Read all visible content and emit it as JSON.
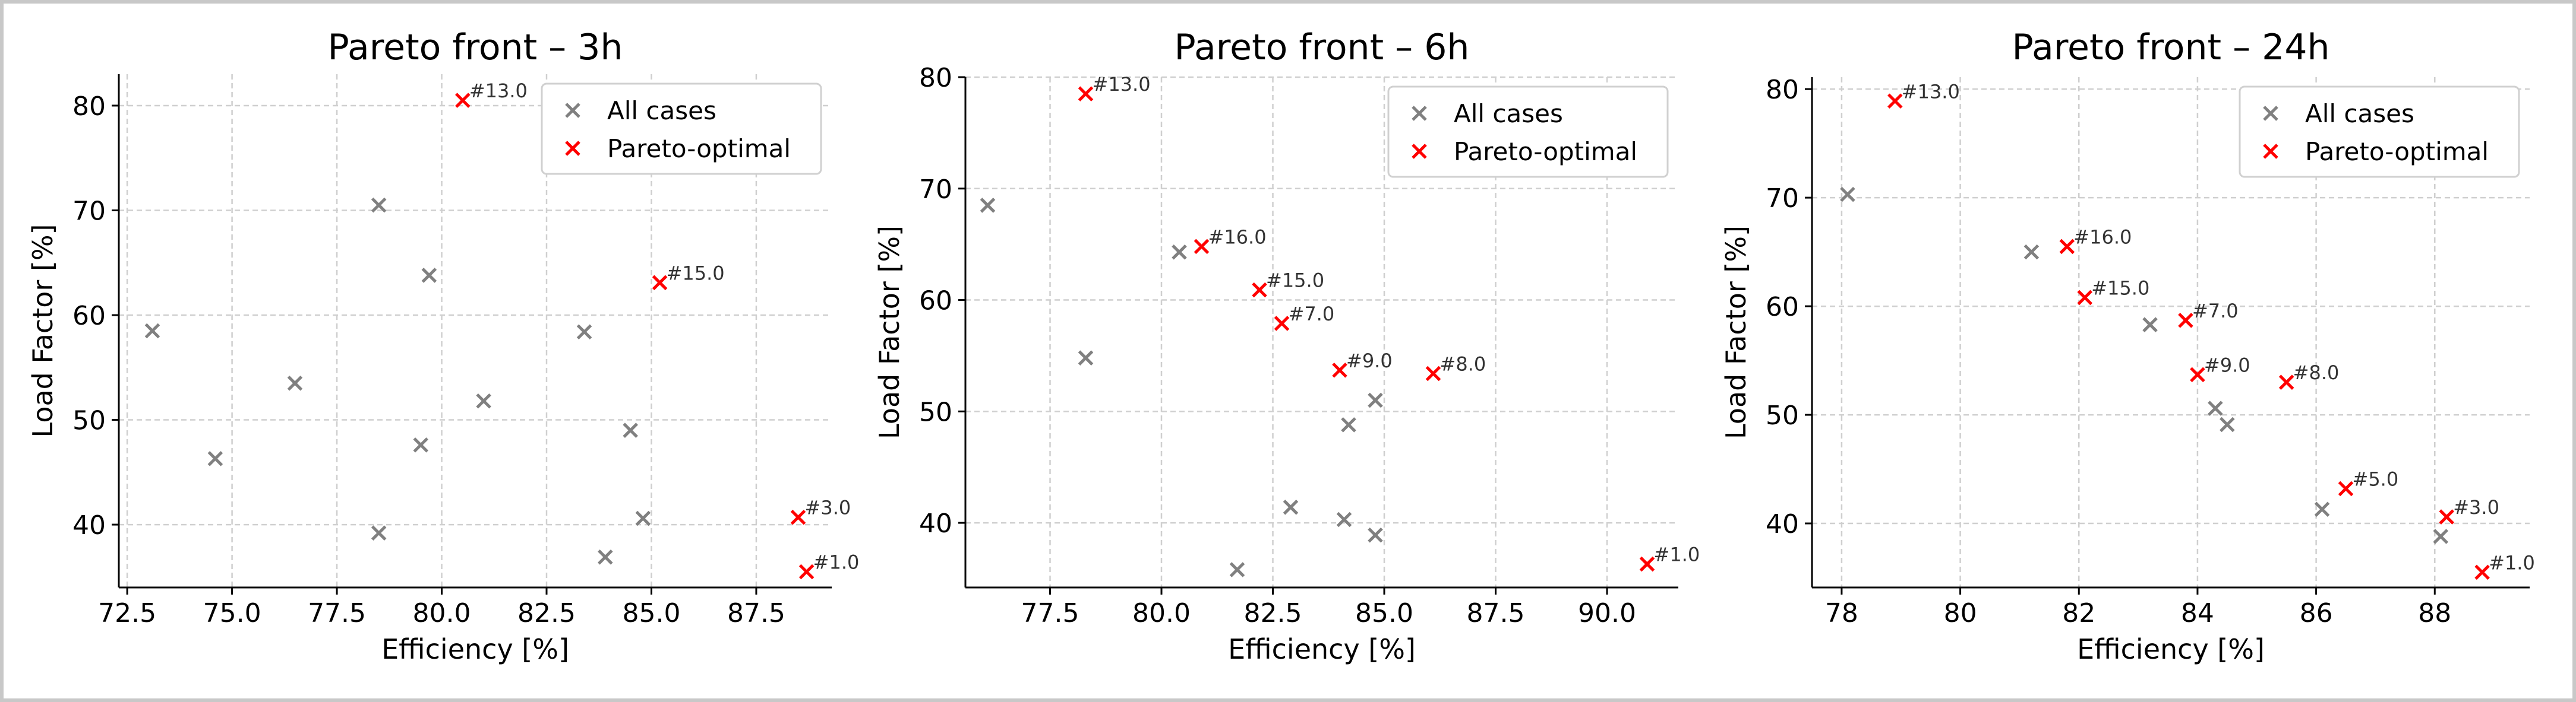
{
  "colors": {
    "all_cases": "#808080",
    "pareto": "#ff0000",
    "grid": "#cfcfcf",
    "axis": "#000000"
  },
  "chart_data": [
    {
      "type": "scatter",
      "title": "Pareto front – 3h",
      "xlabel": "Efficiency [%]",
      "ylabel": "Load Factor [%]",
      "xlim": [
        72.3,
        89.3
      ],
      "ylim": [
        34.0,
        83.0
      ],
      "xticks": [
        72.5,
        75.0,
        77.5,
        80.0,
        82.5,
        85.0,
        87.5
      ],
      "xtick_labels": [
        "72.5",
        "75.0",
        "77.5",
        "80.0",
        "82.5",
        "85.0",
        "87.5"
      ],
      "yticks": [
        40,
        50,
        60,
        70,
        80
      ],
      "ytick_labels": [
        "40",
        "50",
        "60",
        "70",
        "80"
      ],
      "grid": true,
      "legend": {
        "position": "top-right",
        "entries": [
          "All cases",
          "Pareto-optimal"
        ]
      },
      "series": [
        {
          "name": "All cases",
          "marker": "x",
          "points": [
            [
              73.1,
              58.5
            ],
            [
              74.6,
              46.3
            ],
            [
              76.5,
              53.5
            ],
            [
              78.5,
              70.5
            ],
            [
              79.7,
              63.8
            ],
            [
              79.5,
              47.6
            ],
            [
              78.5,
              39.2
            ],
            [
              81.0,
              51.8
            ],
            [
              83.4,
              58.4
            ],
            [
              84.5,
              49.0
            ],
            [
              84.8,
              40.6
            ],
            [
              83.9,
              36.9
            ]
          ]
        },
        {
          "name": "Pareto-optimal",
          "marker": "x",
          "points": [
            [
              80.5,
              80.5
            ],
            [
              85.2,
              63.1
            ],
            [
              88.5,
              40.7
            ],
            [
              88.7,
              35.5
            ]
          ],
          "labels": [
            "#13.0",
            "#15.0",
            "#3.0",
            "#1.0"
          ]
        }
      ]
    },
    {
      "type": "scatter",
      "title": "Pareto front – 6h",
      "xlabel": "Efficiency [%]",
      "ylabel": "Load Factor [%]",
      "xlim": [
        75.6,
        91.6
      ],
      "ylim": [
        34.2,
        80.0
      ],
      "xticks": [
        77.5,
        80.0,
        82.5,
        85.0,
        87.5,
        90.0
      ],
      "xtick_labels": [
        "77.5",
        "80.0",
        "82.5",
        "85.0",
        "87.5",
        "90.0"
      ],
      "yticks": [
        40,
        50,
        60,
        70,
        80
      ],
      "ytick_labels": [
        "40",
        "50",
        "60",
        "70",
        "80"
      ],
      "grid": true,
      "legend": {
        "position": "top-right",
        "entries": [
          "All cases",
          "Pareto-optimal"
        ]
      },
      "series": [
        {
          "name": "All cases",
          "marker": "x",
          "points": [
            [
              76.1,
              68.5
            ],
            [
              78.3,
              54.8
            ],
            [
              80.4,
              64.3
            ],
            [
              82.9,
              41.4
            ],
            [
              84.1,
              40.3
            ],
            [
              84.2,
              48.8
            ],
            [
              84.8,
              51.0
            ],
            [
              84.8,
              38.9
            ],
            [
              81.7,
              35.8
            ]
          ]
        },
        {
          "name": "Pareto-optimal",
          "marker": "x",
          "points": [
            [
              78.3,
              78.5
            ],
            [
              80.9,
              64.8
            ],
            [
              82.2,
              60.9
            ],
            [
              82.7,
              57.9
            ],
            [
              84.0,
              53.7
            ],
            [
              86.1,
              53.4
            ],
            [
              90.9,
              36.3
            ]
          ],
          "labels": [
            "#13.0",
            "#16.0",
            "#15.0",
            "#7.0",
            "#9.0",
            "#8.0",
            "#1.0"
          ]
        }
      ]
    },
    {
      "type": "scatter",
      "title": "Pareto front – 24h",
      "xlabel": "Efficiency [%]",
      "ylabel": "Load Factor [%]",
      "xlim": [
        77.5,
        89.6
      ],
      "ylim": [
        34.1,
        81.1
      ],
      "xticks": [
        78,
        80,
        82,
        84,
        86,
        88
      ],
      "xtick_labels": [
        "78",
        "80",
        "82",
        "84",
        "86",
        "88"
      ],
      "yticks": [
        40,
        50,
        60,
        70,
        80
      ],
      "ytick_labels": [
        "40",
        "50",
        "60",
        "70",
        "80"
      ],
      "grid": true,
      "legend": {
        "position": "top-right",
        "entries": [
          "All cases",
          "Pareto-optimal"
        ]
      },
      "series": [
        {
          "name": "All cases",
          "marker": "x",
          "points": [
            [
              78.1,
              70.3
            ],
            [
              81.2,
              65.0
            ],
            [
              83.2,
              58.3
            ],
            [
              84.3,
              50.6
            ],
            [
              84.5,
              49.1
            ],
            [
              86.1,
              41.3
            ],
            [
              88.1,
              38.8
            ]
          ]
        },
        {
          "name": "Pareto-optimal",
          "marker": "x",
          "points": [
            [
              78.9,
              78.9
            ],
            [
              81.8,
              65.5
            ],
            [
              82.1,
              60.8
            ],
            [
              83.8,
              58.7
            ],
            [
              84.0,
              53.7
            ],
            [
              85.5,
              53.0
            ],
            [
              86.5,
              43.2
            ],
            [
              88.2,
              40.6
            ],
            [
              88.8,
              35.5
            ]
          ],
          "labels": [
            "#13.0",
            "#16.0",
            "#15.0",
            "#7.0",
            "#9.0",
            "#8.0",
            "#5.0",
            "#3.0",
            "#1.0"
          ]
        }
      ]
    }
  ]
}
